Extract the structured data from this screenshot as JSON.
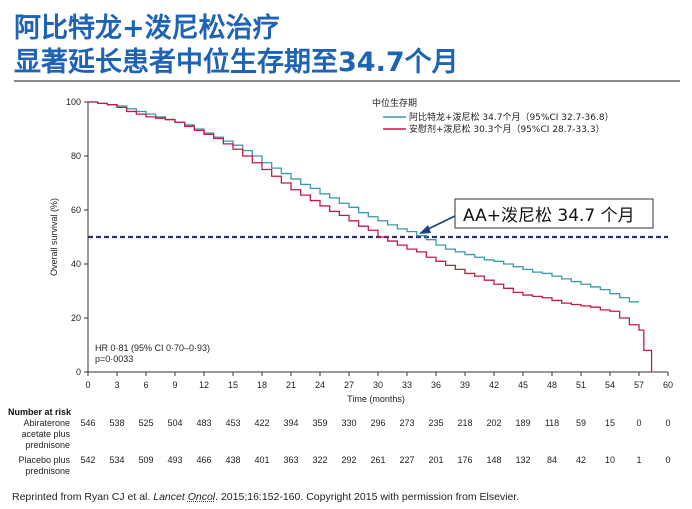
{
  "slide": {
    "title_line1": "阿比特龙+泼尼松治疗",
    "title_line2": "显著延长患者中位生存期至34.7个月",
    "citation_prefix": "Reprinted from Ryan CJ et al. ",
    "citation_journal": "Lancet",
    "citation_journal2": "Oncol",
    "citation_suffix": ". 2015;16:152-160. Copyright 2015 with permission from Elsevier."
  },
  "chart_data": {
    "type": "line",
    "xlabel": "Time (months)",
    "ylabel": "Overall survival (%)",
    "xlim": [
      0,
      60
    ],
    "ylim": [
      0,
      100
    ],
    "x_ticks": [
      0,
      3,
      6,
      9,
      12,
      15,
      18,
      21,
      24,
      27,
      30,
      33,
      36,
      39,
      42,
      45,
      48,
      51,
      54,
      57,
      60
    ],
    "y_ticks": [
      0,
      20,
      40,
      60,
      80,
      100
    ],
    "legend_title": "中位生存期",
    "legend_position": "top-right",
    "median_line": {
      "y": 50
    },
    "annotation": "AA+泼尼松 34.7 个月",
    "stats_text": [
      "HR 0·81 (95% CI 0·70–0·93)",
      "p=0·0033"
    ],
    "series": [
      {
        "name": "阿比特龙+泼尼松 34.7个月（95%CI 32.7-36.8）",
        "color": "#3d98a8",
        "x": [
          0,
          1,
          2,
          3,
          4,
          5,
          6,
          7,
          8,
          9,
          10,
          11,
          12,
          13,
          14,
          15,
          16,
          17,
          18,
          19,
          20,
          21,
          22,
          23,
          24,
          25,
          26,
          27,
          28,
          29,
          30,
          31,
          32,
          33,
          34,
          35,
          36,
          37,
          38,
          39,
          40,
          41,
          42,
          43,
          44,
          45,
          46,
          47,
          48,
          49,
          50,
          51,
          52,
          53,
          54,
          55,
          56,
          57
        ],
        "y": [
          100,
          99.5,
          99,
          98.5,
          97.5,
          96.5,
          95.5,
          94.5,
          93.5,
          92.5,
          91.5,
          90,
          88.5,
          87,
          85.5,
          84,
          82,
          80,
          77.5,
          75.5,
          73.5,
          71.5,
          69.5,
          68,
          66,
          64.5,
          62.5,
          61,
          59,
          57.5,
          56,
          54.5,
          53,
          52,
          50.5,
          49,
          47,
          45.5,
          44.5,
          43.5,
          42.5,
          41.5,
          41,
          40,
          39,
          38,
          37,
          36.5,
          35.5,
          34.5,
          33.5,
          32.5,
          31.5,
          30.5,
          29,
          27.5,
          26,
          26
        ]
      },
      {
        "name": "安慰剂+泼尼松 30.3个月（95%CI 28.7-33.3）",
        "color": "#c41a45",
        "x": [
          0,
          1,
          2,
          3,
          4,
          5,
          6,
          7,
          8,
          9,
          10,
          11,
          12,
          13,
          14,
          15,
          16,
          17,
          18,
          19,
          20,
          21,
          22,
          23,
          24,
          25,
          26,
          27,
          28,
          29,
          30,
          31,
          32,
          33,
          34,
          35,
          36,
          37,
          38,
          39,
          40,
          41,
          42,
          43,
          44,
          45,
          46,
          47,
          48,
          49,
          50,
          51,
          52,
          53,
          54,
          55,
          56,
          57,
          57.5,
          58,
          58.3
        ],
        "y": [
          100,
          99.5,
          99,
          98,
          96.5,
          95.5,
          94.5,
          94,
          93.5,
          92.5,
          91,
          89.5,
          88,
          86.5,
          84.5,
          82.5,
          80,
          77.5,
          75,
          72.5,
          70,
          67.5,
          65.5,
          63.5,
          61.5,
          59.5,
          58,
          56,
          54,
          52.5,
          50,
          48.5,
          47,
          45.5,
          44.5,
          42.5,
          41,
          39.5,
          38,
          36.5,
          35.5,
          34,
          32.5,
          31,
          29.5,
          28.5,
          28,
          27.5,
          26.5,
          25.5,
          25,
          24.5,
          24,
          23,
          22.5,
          20,
          17.5,
          15.5,
          8,
          8,
          0
        ]
      }
    ],
    "risk_table": {
      "title": "Number at risk",
      "rows": [
        {
          "label": [
            "Abiraterone",
            "acetate plus",
            "prednisone"
          ],
          "values": [
            546,
            538,
            525,
            504,
            483,
            453,
            422,
            394,
            359,
            330,
            296,
            273,
            235,
            218,
            202,
            189,
            118,
            59,
            15,
            0,
            0
          ]
        },
        {
          "label": [
            "Placebo plus",
            "prednisone"
          ],
          "values": [
            542,
            534,
            509,
            493,
            466,
            438,
            401,
            363,
            322,
            292,
            261,
            227,
            201,
            176,
            148,
            132,
            84,
            42,
            10,
            1,
            0
          ]
        }
      ]
    }
  }
}
